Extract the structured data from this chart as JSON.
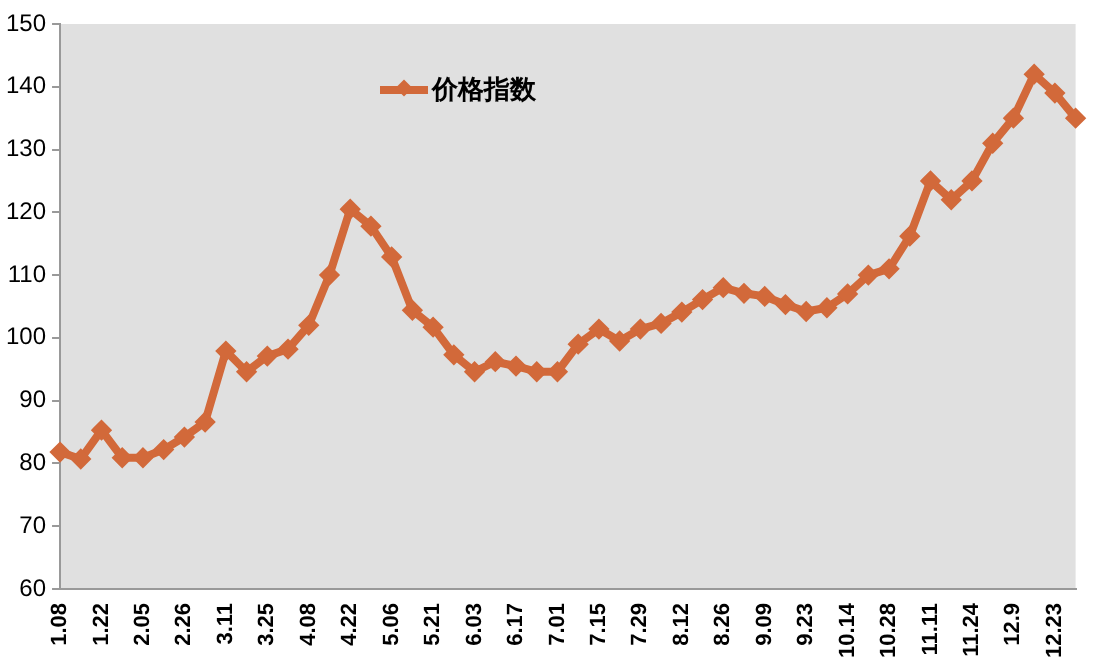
{
  "chart_data": {
    "type": "line",
    "categories": [
      "1.08",
      null,
      "1.22",
      null,
      "2.05",
      null,
      "2.26",
      null,
      "3.11",
      null,
      "3.25",
      null,
      "4.08",
      null,
      "4.22",
      null,
      "5.06",
      null,
      "5.21",
      null,
      "6.03",
      null,
      "6.17",
      null,
      "7.01",
      null,
      "7.15",
      null,
      "7.29",
      null,
      "8.12",
      null,
      "8.26",
      null,
      "9.09",
      null,
      "9.23",
      null,
      "10.14",
      null,
      "10.28",
      null,
      "11.11",
      null,
      "11.24",
      null,
      "12.9",
      null,
      "12.23",
      null
    ],
    "series": [
      {
        "name": "价格指数",
        "color": "#d2693a",
        "values": [
          81.8,
          80.7,
          85.3,
          80.9,
          80.9,
          82.2,
          84.2,
          86.6,
          97.9,
          94.6,
          97.1,
          98.2,
          102,
          110,
          120.5,
          117.8,
          112.9,
          104.4,
          101.7,
          97.3,
          94.6,
          96.2,
          95.5,
          94.6,
          94.6,
          99,
          101.4,
          99.5,
          101.4,
          102.3,
          104.1,
          106.1,
          108,
          107.1,
          106.6,
          105.3,
          104.2,
          104.8,
          107,
          110,
          111,
          116.2,
          125,
          122,
          125,
          131,
          135,
          142,
          139,
          135
        ]
      }
    ],
    "ylim": [
      60,
      150
    ],
    "yticks": [
      60,
      70,
      80,
      90,
      100,
      110,
      120,
      130,
      140,
      150
    ],
    "grid": false,
    "legend": "top left",
    "marker": "diamond",
    "line_style": "solid"
  }
}
